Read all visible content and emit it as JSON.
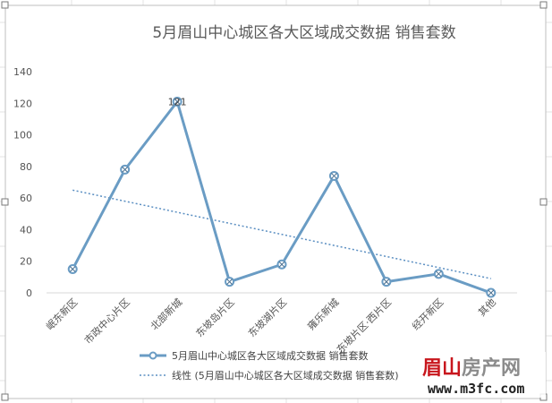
{
  "chart_data": {
    "type": "line",
    "title": "5月眉山中心城区各大区域成交数据 销售套数",
    "categories": [
      "岷东新区",
      "市政中心片区",
      "北部新城",
      "东坡岛片区",
      "东坡湖片区",
      "雍乐新城",
      "东坡片区·西片区",
      "经开新区",
      "其他"
    ],
    "series": [
      {
        "name": "5月眉山中心城区各大区域成交数据 销售套数",
        "values": [
          15,
          78,
          121,
          7,
          18,
          74,
          7,
          12,
          0
        ],
        "color": "#6a9cc4"
      }
    ],
    "trendline": {
      "name": "线性 (5月眉山中心城区各大区域成交数据 销售套数)",
      "start": 65,
      "end": 9,
      "color": "#5b8fc2"
    },
    "data_labels": [
      {
        "index": 2,
        "text": "121"
      }
    ],
    "ylim": [
      0,
      140
    ],
    "yticks": [
      0,
      20,
      40,
      60,
      80,
      100,
      120,
      140
    ],
    "grid": false,
    "legend_position": "bottom"
  },
  "watermark": {
    "brand_main": "眉山",
    "brand_rest": "房产网",
    "url": "www.m3fc.com",
    "color_main": "#c8161d"
  }
}
